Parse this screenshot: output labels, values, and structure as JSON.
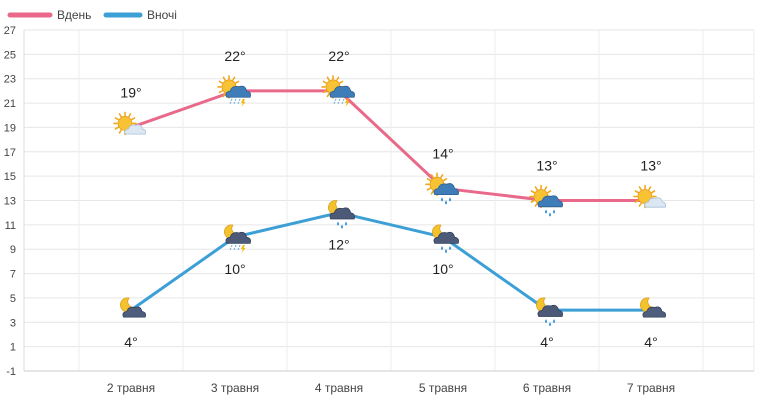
{
  "chart_data": {
    "type": "line",
    "title": "",
    "xlabel": "",
    "ylabel": "",
    "categories": [
      "2 травня",
      "3 травня",
      "4 травня",
      "5 травня",
      "6 травня",
      "7 травня"
    ],
    "ylim": [
      -1,
      27
    ],
    "yticks": [
      "-1",
      "1",
      "3",
      "5",
      "7",
      "9",
      "11",
      "13",
      "15",
      "17",
      "19",
      "21",
      "23",
      "25",
      "27"
    ],
    "grid": true,
    "legend_position": "top-left",
    "series": [
      {
        "name": "Вдень",
        "color": "#e8698a",
        "values": [
          19,
          22,
          22,
          14,
          13,
          13
        ],
        "labels": [
          "19°",
          "22°",
          "22°",
          "14°",
          "13°",
          "13°"
        ],
        "icons": [
          "sun-cloud-icon",
          "sun-storm-rain-icon",
          "sun-storm-rain-icon",
          "sun-rain-icon",
          "sun-rain-icon",
          "sun-cloud-icon"
        ]
      },
      {
        "name": "Вночі",
        "color": "#3c9fd6",
        "values": [
          4,
          10,
          12,
          10,
          4,
          4
        ],
        "labels": [
          "4°",
          "10°",
          "12°",
          "10°",
          "4°",
          "4°"
        ],
        "icons": [
          "moon-cloud-icon",
          "moon-storm-rain-icon",
          "moon-rain-icon",
          "moon-rain-icon",
          "moon-rain-icon",
          "moon-cloud-icon"
        ]
      }
    ]
  }
}
